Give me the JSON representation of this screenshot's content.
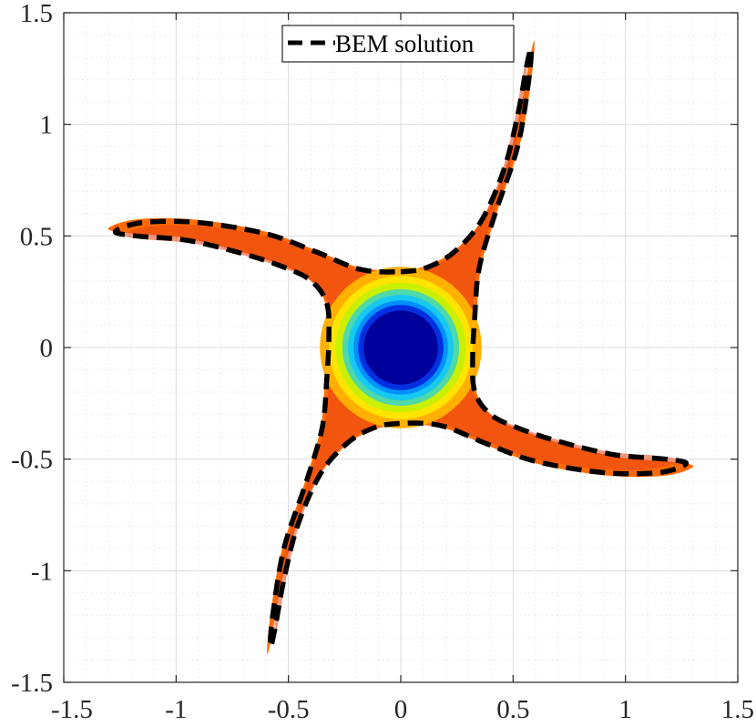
{
  "chart_data": {
    "type": "contour",
    "title": "",
    "xlabel": "",
    "ylabel": "",
    "xlim": [
      -1.5,
      1.5
    ],
    "ylim": [
      -1.5,
      1.5
    ],
    "x_ticks": [
      "-1.5",
      "-1",
      "-0.5",
      "0",
      "0.5",
      "1",
      "1.5"
    ],
    "y_ticks": [
      "1.5",
      "1",
      "0.5",
      "0",
      "-0.5",
      "-1",
      "-1.5"
    ],
    "grid": "major and minor",
    "legend": {
      "position": "top",
      "entries": [
        "BEM solution"
      ]
    },
    "series": [
      {
        "name": "BEM solution",
        "style": "dashed",
        "color": "#000000",
        "closed": true,
        "points": [
          [
            0.0,
            0.34
          ],
          [
            0.12,
            0.36
          ],
          [
            0.24,
            0.43
          ],
          [
            0.36,
            0.57
          ],
          [
            0.46,
            0.8
          ],
          [
            0.52,
            1.04
          ],
          [
            0.56,
            1.26
          ],
          [
            0.58,
            1.34
          ],
          [
            0.57,
            1.2
          ],
          [
            0.52,
            0.9
          ],
          [
            0.42,
            0.6
          ],
          [
            0.35,
            0.36
          ],
          [
            0.33,
            0.15
          ],
          [
            0.32,
            -0.05
          ],
          [
            0.33,
            -0.2
          ],
          [
            0.4,
            -0.3
          ],
          [
            0.52,
            -0.36
          ],
          [
            0.7,
            -0.42
          ],
          [
            0.95,
            -0.48
          ],
          [
            1.18,
            -0.5
          ],
          [
            1.27,
            -0.52
          ],
          [
            1.15,
            -0.56
          ],
          [
            0.9,
            -0.56
          ],
          [
            0.6,
            -0.51
          ],
          [
            0.38,
            -0.43
          ],
          [
            0.18,
            -0.35
          ],
          [
            0.0,
            -0.34
          ],
          [
            -0.12,
            -0.36
          ],
          [
            -0.24,
            -0.43
          ],
          [
            -0.36,
            -0.57
          ],
          [
            -0.46,
            -0.8
          ],
          [
            -0.52,
            -1.04
          ],
          [
            -0.56,
            -1.26
          ],
          [
            -0.58,
            -1.34
          ],
          [
            -0.57,
            -1.2
          ],
          [
            -0.52,
            -0.9
          ],
          [
            -0.42,
            -0.6
          ],
          [
            -0.35,
            -0.36
          ],
          [
            -0.33,
            -0.15
          ],
          [
            -0.32,
            0.05
          ],
          [
            -0.33,
            0.2
          ],
          [
            -0.4,
            0.3
          ],
          [
            -0.52,
            0.36
          ],
          [
            -0.7,
            0.42
          ],
          [
            -0.95,
            0.48
          ],
          [
            -1.18,
            0.5
          ],
          [
            -1.27,
            0.52
          ],
          [
            -1.15,
            0.56
          ],
          [
            -0.9,
            0.56
          ],
          [
            -0.6,
            0.51
          ],
          [
            -0.38,
            0.43
          ],
          [
            -0.18,
            0.35
          ]
        ]
      }
    ],
    "field_colors": [
      "#e8431a",
      "#ff6a00",
      "#ffb000",
      "#ffe400",
      "#c8f000",
      "#4fd8a8",
      "#17c8f0",
      "#0090ff",
      "#0030e0",
      "#00009a"
    ]
  }
}
